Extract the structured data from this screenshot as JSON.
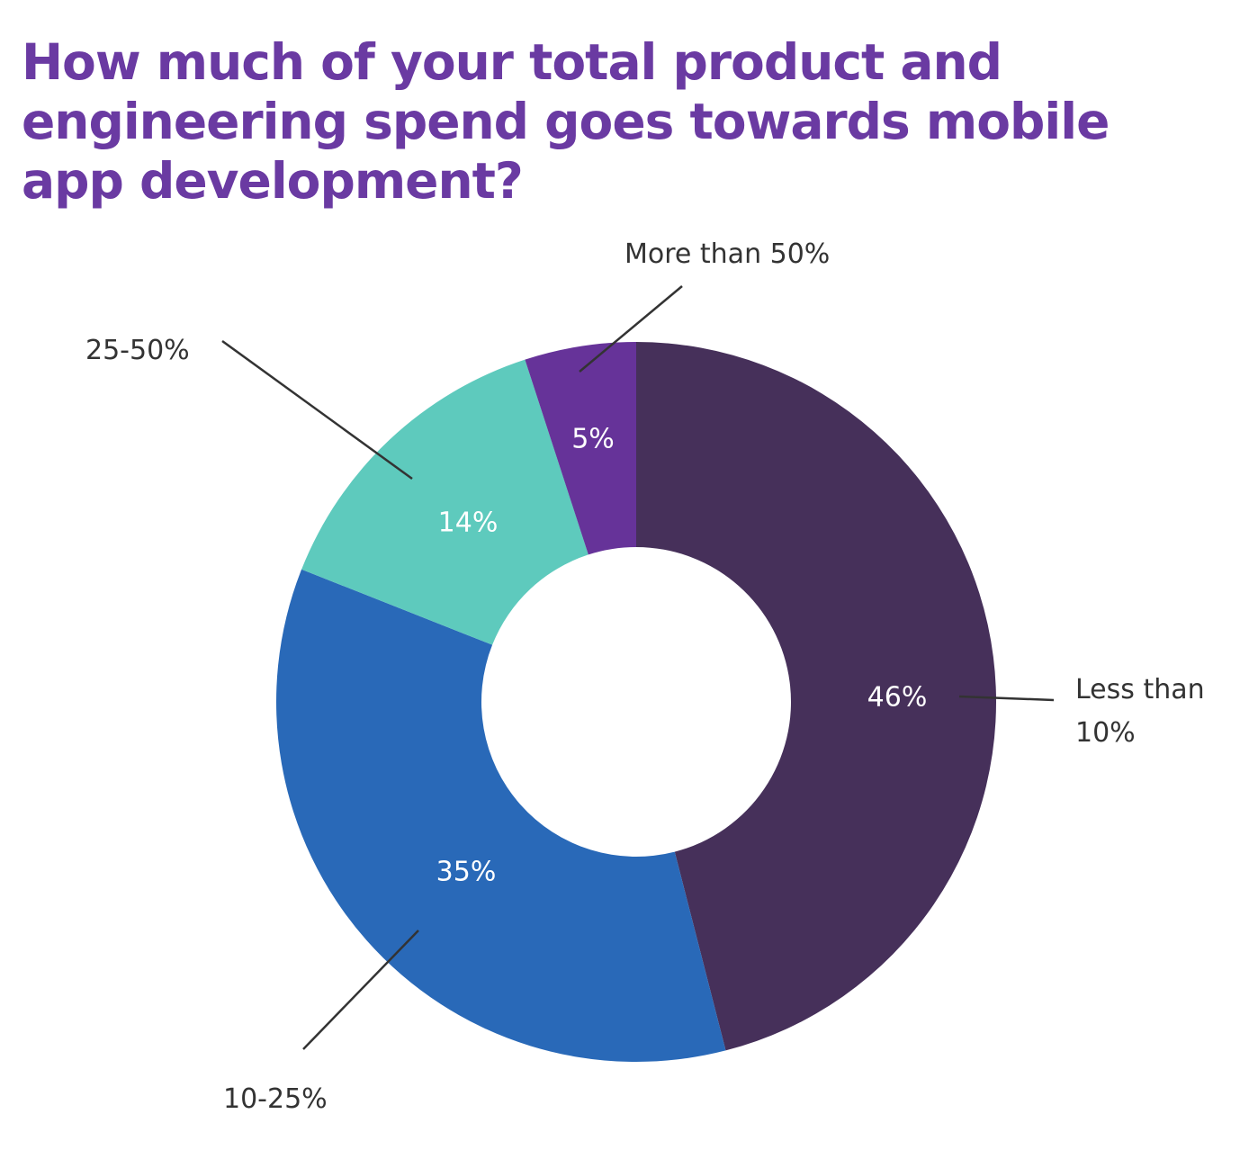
{
  "chart_data": {
    "type": "pie",
    "variant": "donut",
    "title": "How much of your total product and engineering spend goes towards mobile app development?",
    "slices": [
      {
        "label": "Less than 10%",
        "value": 46,
        "value_label": "46%",
        "color": "#46305A",
        "label_lines": [
          "Less than",
          "10%"
        ]
      },
      {
        "label": "10-25%",
        "value": 35,
        "value_label": "35%",
        "color": "#2969B8",
        "label_lines": [
          "10-25%"
        ]
      },
      {
        "label": "25-50%",
        "value": 14,
        "value_label": "14%",
        "color": "#5ECABD",
        "label_lines": [
          "25-50%"
        ]
      },
      {
        "label": "More than 50%",
        "value": 5,
        "value_label": "5%",
        "color": "#663399",
        "label_lines": [
          "More than 50%"
        ]
      }
    ],
    "start": "12 o'clock",
    "direction": "clockwise"
  },
  "colors": {
    "title": "#6A3AA2",
    "label_text": "#333333",
    "value_text": "#FFFFFF"
  }
}
